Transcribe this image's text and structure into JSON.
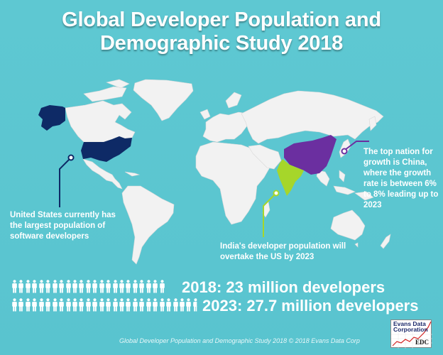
{
  "header": {
    "title_line1": "Global Developer Population and",
    "title_line2": "Demographic Study 2018"
  },
  "map": {
    "ocean_color": "#5cc6d0",
    "land_color": "#f2f2f2",
    "highlights": [
      {
        "country": "United States",
        "color": "#0e2a66"
      },
      {
        "country": "China",
        "color": "#6b2fa0"
      },
      {
        "country": "India",
        "color": "#a6d62a"
      }
    ]
  },
  "callouts": {
    "us": {
      "text": "United States currently has the largest population of software developers",
      "line_color": "#0e2a66"
    },
    "china": {
      "text": "The top nation for growth is China, where the growth rate is between 6% to 8% leading up to 2023",
      "line_color": "#6b2fa0"
    },
    "india": {
      "text": "India's developer population will overtake the US by 2023",
      "line_color": "#a6d62a"
    }
  },
  "stats": {
    "row_2018": {
      "label": "2018: 23 million developers",
      "icon_count": 23
    },
    "row_2023": {
      "label": "2023: 27.7 million developers",
      "icon_count": 27.7
    }
  },
  "footer": {
    "credit": "Global Developer Population and Demographic Study 2018 © 2018 Evans Data Corp"
  },
  "logo": {
    "line1": "Evans Data",
    "line2": "Corporation",
    "abbr": "EDC"
  }
}
